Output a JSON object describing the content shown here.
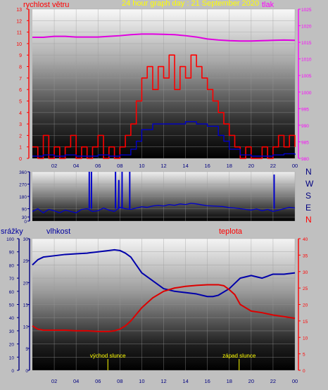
{
  "header": {
    "title": "24 hour graph day : 21 September 2020",
    "wind_label": "rychlost větru",
    "pressure_label": "tlak"
  },
  "middle": {
    "compass": [
      "N",
      "W",
      "S",
      "E",
      "N"
    ]
  },
  "bottom": {
    "rain_label": "srážky",
    "humidity_label": "vlhkost",
    "temp_label": "teplota",
    "sunrise_label": "východ slunce",
    "sunset_label": "západ slunce"
  },
  "x_ticks": [
    "02",
    "04",
    "06",
    "08",
    "10",
    "12",
    "14",
    "16",
    "18",
    "20",
    "22",
    "00"
  ],
  "colors": {
    "wind_speed": "#ff0000",
    "wind_avg": "#0000cc",
    "pressure": "#e000e0",
    "direction": "#0000cc",
    "humidity": "#0000aa",
    "temperature": "#dd0000",
    "title": "#ffff00",
    "sun_marker": "#ffff00"
  },
  "chart_data": [
    {
      "type": "line",
      "x_unit": "hour",
      "left_axis": {
        "ticks": [
          0,
          1,
          2,
          3,
          4,
          5,
          6,
          7,
          8,
          9,
          10,
          11,
          12,
          13
        ],
        "ylim": [
          0,
          13
        ]
      },
      "right_axis": {
        "ticks": [
          980,
          985,
          990,
          995,
          1000,
          1005,
          1010,
          1015,
          1020,
          1025
        ],
        "ylim": [
          980,
          1025
        ]
      },
      "series": [
        {
          "name": "rychlost větru",
          "axis": "left",
          "x": [
            0,
            0.5,
            1,
            1.5,
            2,
            2.5,
            3,
            3.5,
            4,
            4.5,
            5,
            5.5,
            6,
            6.5,
            7,
            7.5,
            8,
            8.5,
            9,
            9.5,
            10,
            10.5,
            11,
            11.5,
            12,
            12.5,
            13,
            13.5,
            14,
            14.5,
            15,
            15.5,
            16,
            16.5,
            17,
            17.5,
            18,
            18.5,
            19,
            19.5,
            20,
            20.5,
            21,
            21.5,
            22,
            22.5,
            23,
            23.5,
            24
          ],
          "y": [
            1,
            0,
            2,
            0,
            1,
            0,
            1,
            2,
            0,
            1,
            0,
            1,
            2,
            0,
            1,
            0,
            1,
            2,
            3,
            5,
            7,
            8,
            6,
            8,
            7,
            9,
            6,
            8,
            7,
            9,
            8,
            7,
            6,
            5,
            4,
            3,
            2,
            1,
            0,
            1,
            0,
            0,
            1,
            0,
            1,
            2,
            1,
            2,
            1
          ]
        },
        {
          "name": "average",
          "axis": "left",
          "x": [
            0,
            1,
            2,
            3,
            4,
            5,
            6,
            7,
            8,
            9,
            9.5,
            10,
            11,
            12,
            13,
            14,
            15,
            16,
            17,
            17.5,
            18,
            19,
            20,
            21,
            22,
            23,
            24
          ],
          "y": [
            0.2,
            0.3,
            0.2,
            0.3,
            0.2,
            0.2,
            0.3,
            0.2,
            0.3,
            0.8,
            1.5,
            2.5,
            3,
            3,
            3,
            3.2,
            3,
            2.8,
            2,
            1.5,
            0.8,
            0.3,
            0.2,
            0.2,
            0.3,
            0.4,
            0.3
          ]
        },
        {
          "name": "tlak",
          "axis": "right",
          "x": [
            0,
            1,
            2,
            3,
            4,
            5,
            6,
            7,
            8,
            9,
            10,
            11,
            12,
            13,
            14,
            15,
            16,
            17,
            18,
            19,
            20,
            21,
            22,
            23,
            24
          ],
          "y": [
            1016.5,
            1016.5,
            1016.8,
            1016.8,
            1016.6,
            1016.6,
            1016.6,
            1016.8,
            1017,
            1017.3,
            1017.5,
            1017.5,
            1017.4,
            1017.3,
            1017,
            1016.6,
            1016,
            1015.7,
            1015.5,
            1015.4,
            1015.4,
            1015.5,
            1015.6,
            1015.7,
            1015.6
          ]
        }
      ]
    },
    {
      "type": "line",
      "x_unit": "hour",
      "left_axis": {
        "ticks": [
          0,
          30,
          90,
          180,
          270,
          360
        ],
        "ylim": [
          0,
          360
        ]
      },
      "series": [
        {
          "name": "wind direction",
          "x": [
            0,
            0.5,
            1,
            1.5,
            2,
            2.5,
            3,
            3.5,
            4,
            4.5,
            5,
            5.5,
            6,
            6.5,
            7,
            7.5,
            8,
            8.5,
            9,
            9.5,
            10,
            10.5,
            11,
            11.5,
            12,
            12.5,
            13,
            13.5,
            14,
            14.5,
            15,
            15.5,
            16,
            16.5,
            17,
            17.5,
            18,
            18.5,
            19,
            19.5,
            20,
            20.5,
            21,
            21.5,
            22,
            22.5,
            23,
            23.5,
            24
          ],
          "y": [
            70,
            90,
            60,
            85,
            75,
            60,
            80,
            70,
            60,
            85,
            90,
            70,
            75,
            95,
            80,
            70,
            100,
            90,
            85,
            95,
            105,
            100,
            110,
            115,
            110,
            120,
            115,
            125,
            120,
            130,
            125,
            118,
            112,
            110,
            108,
            105,
            98,
            95,
            90,
            85,
            80,
            88,
            75,
            85,
            70,
            80,
            90,
            100,
            95
          ]
        }
      ],
      "spikes": [
        [
          5.2,
          360
        ],
        [
          5.4,
          360
        ],
        [
          7.6,
          360
        ],
        [
          7.9,
          300
        ],
        [
          8.2,
          360
        ],
        [
          8.9,
          360
        ],
        [
          22.1,
          340
        ]
      ]
    },
    {
      "type": "line",
      "x_unit": "hour",
      "left_axis_rain": {
        "ticks": [
          0,
          10,
          20,
          30,
          40,
          50,
          60,
          70,
          80,
          90,
          100
        ],
        "ylim": [
          0,
          100
        ]
      },
      "left_axis_humidity": {
        "ticks": [
          0,
          5,
          10,
          15,
          20,
          25,
          30
        ],
        "ylim": [
          0,
          30
        ]
      },
      "right_axis": {
        "ticks": [
          0,
          5,
          10,
          15,
          20,
          25,
          30,
          35,
          40
        ],
        "ylim": [
          0,
          40
        ]
      },
      "sunrise_hour": 6.9,
      "sunset_hour": 18.9,
      "series": [
        {
          "name": "vlhkost",
          "axis": "left",
          "x": [
            0,
            0.5,
            1,
            2,
            3,
            4,
            5,
            6,
            7,
            7.5,
            8,
            8.5,
            9,
            9.5,
            10,
            11,
            12,
            13,
            14,
            15,
            16,
            16.5,
            17,
            18,
            18.5,
            19,
            20,
            21,
            22,
            23,
            24
          ],
          "y": [
            80,
            84,
            86,
            87,
            88,
            88.5,
            89,
            90,
            91,
            91.5,
            91,
            89,
            86,
            80,
            74,
            68,
            62,
            60,
            59,
            58,
            56,
            56,
            57,
            62,
            66,
            70,
            72,
            70,
            73,
            73,
            74
          ]
        },
        {
          "name": "teplota",
          "axis": "right",
          "x": [
            0,
            0.5,
            1,
            2,
            3,
            4,
            5,
            6,
            7,
            7.5,
            8,
            8.5,
            9,
            9.5,
            10,
            11,
            12,
            13,
            14,
            15,
            16,
            16.5,
            17,
            17.5,
            18,
            18.5,
            19,
            20,
            21,
            22,
            23,
            24
          ],
          "y": [
            13.5,
            12.5,
            12.2,
            12.2,
            12.2,
            12,
            12,
            11.8,
            11.8,
            12,
            12.5,
            13.5,
            15,
            17,
            19,
            22,
            24,
            25,
            25.5,
            25.8,
            26,
            26,
            26,
            25.7,
            24.5,
            23,
            20,
            18,
            17.5,
            16.8,
            16.3,
            15.8
          ]
        }
      ]
    }
  ]
}
